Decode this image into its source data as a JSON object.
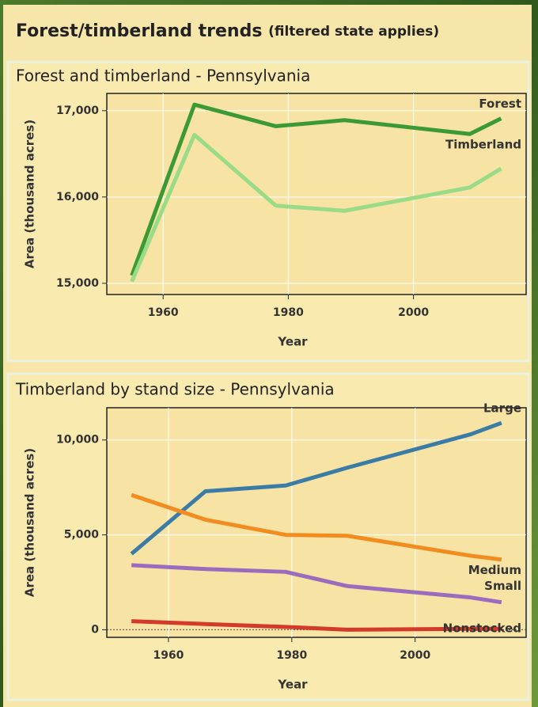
{
  "header": {
    "title": "Forest/timberland trends",
    "note": "(filtered state applies)"
  },
  "chart_data": [
    {
      "type": "line",
      "title": "Forest and timberland - Pennsylvania",
      "x_label": "Year",
      "y_label": "Area (thousand acres)",
      "x": [
        1955,
        1965,
        1978,
        1989,
        2009,
        2014
      ],
      "series": [
        {
          "name": "Forest",
          "color": "#3c9a35",
          "values": [
            15090,
            17070,
            16820,
            16890,
            16730,
            16910
          ]
        },
        {
          "name": "Timberland",
          "color": "#9adb87",
          "values": [
            15020,
            16720,
            15900,
            15840,
            16110,
            16330
          ]
        }
      ],
      "xlim": [
        1951,
        2018
      ],
      "xticks": [
        1960,
        1980,
        2000
      ],
      "ylim": [
        14870,
        17200
      ],
      "yticks": [
        {
          "value": 15000,
          "label": "15,000"
        },
        {
          "value": 16000,
          "label": "16,000"
        },
        {
          "value": 17000,
          "label": "17,000"
        }
      ],
      "grid": true
    },
    {
      "type": "line",
      "title": "Timberland by stand size - Pennsylvania",
      "x_label": "Year",
      "y_label": "Area (thousand acres)",
      "x": [
        1954,
        1966,
        1979,
        1989,
        2009,
        2014
      ],
      "series": [
        {
          "name": "Large",
          "color": "#3b7ca6",
          "values": [
            4000,
            7300,
            7600,
            8540,
            10300,
            10900
          ]
        },
        {
          "name": "Medium",
          "color": "#f28c1e",
          "values": [
            7100,
            5800,
            5000,
            4950,
            3900,
            3700
          ]
        },
        {
          "name": "Small",
          "color": "#9b6bbd",
          "values": [
            3400,
            3200,
            3050,
            2300,
            1700,
            1450
          ]
        },
        {
          "name": "Nonstocked",
          "color": "#d43a2a",
          "values": [
            450,
            300,
            150,
            0,
            50,
            50
          ]
        }
      ],
      "xlim": [
        1950,
        2018
      ],
      "xticks": [
        1960,
        1980,
        2000
      ],
      "ylim": [
        -400,
        11700
      ],
      "yticks": [
        0,
        {
          "value": 5000,
          "label": "5,000"
        },
        {
          "value": 10000,
          "label": "10,000"
        }
      ],
      "grid": true
    }
  ]
}
